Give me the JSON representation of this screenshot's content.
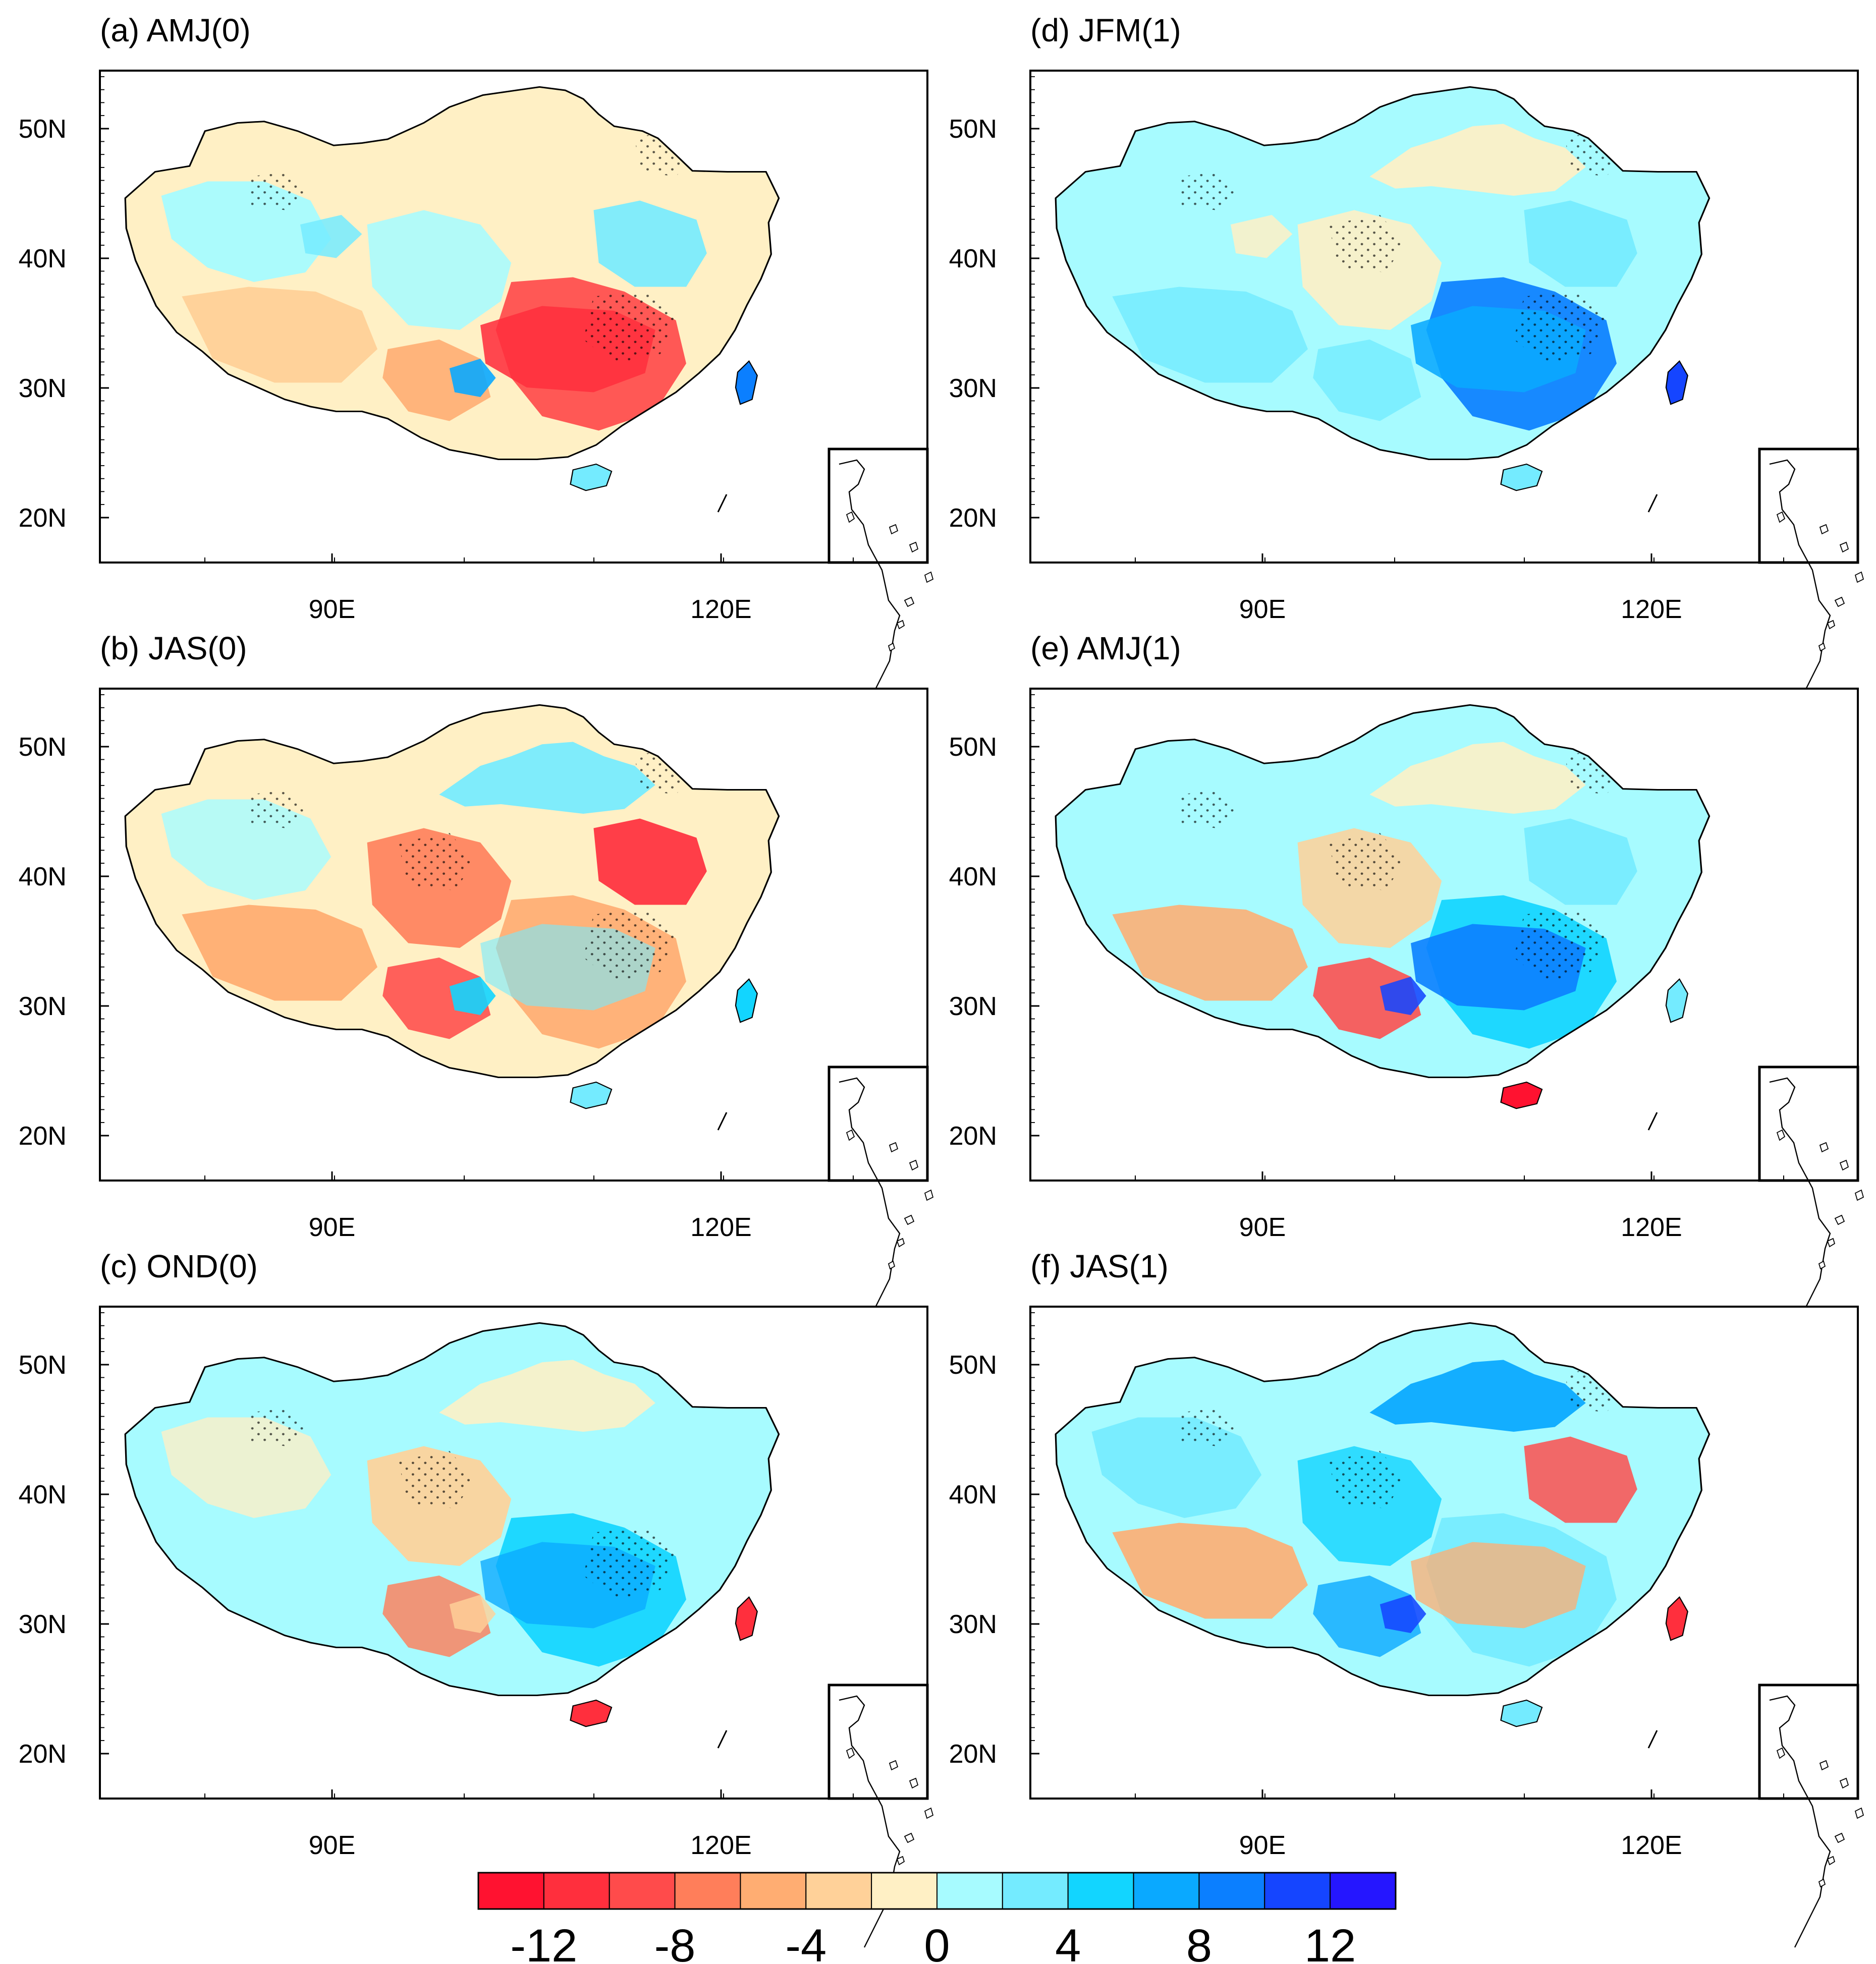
{
  "figure": {
    "panels": [
      {
        "id": "a",
        "title": "(a) AMJ(0)",
        "lat_ticks": [
          "50N",
          "40N",
          "30N",
          "20N"
        ],
        "lon_ticks": [
          "90E",
          "120E"
        ],
        "fill_scheme": "warm-south",
        "stippled": true
      },
      {
        "id": "b",
        "title": "(b) JAS(0)",
        "lat_ticks": [
          "50N",
          "40N",
          "30N",
          "20N"
        ],
        "lon_ticks": [
          "90E",
          "120E"
        ],
        "fill_scheme": "warm-east",
        "stippled": true
      },
      {
        "id": "c",
        "title": "(c) OND(0)",
        "lat_ticks": [
          "50N",
          "40N",
          "30N",
          "20N"
        ],
        "lon_ticks": [
          "90E",
          "120E"
        ],
        "fill_scheme": "cool-south",
        "stippled": true
      },
      {
        "id": "d",
        "title": "(d) JFM(1)",
        "lat_ticks": [
          "50N",
          "40N",
          "30N",
          "20N"
        ],
        "lon_ticks": [
          "90E",
          "120E"
        ],
        "fill_scheme": "cool-southeast",
        "stippled": true
      },
      {
        "id": "e",
        "title": "(e) AMJ(1)",
        "lat_ticks": [
          "50N",
          "40N",
          "30N",
          "20N"
        ],
        "lon_ticks": [
          "90E",
          "120E"
        ],
        "fill_scheme": "cool-south-strong",
        "stippled": true
      },
      {
        "id": "f",
        "title": "(f) JAS(1)",
        "lat_ticks": [
          "50N",
          "40N",
          "30N",
          "20N"
        ],
        "lon_ticks": [
          "90E",
          "120E"
        ],
        "fill_scheme": "cool-northeast",
        "stippled": true
      }
    ],
    "colorbar": {
      "colors": [
        "#ff1230",
        "#ff2f3d",
        "#ff4b4b",
        "#ff7e5a",
        "#ffad72",
        "#ffd199",
        "#fff0c5",
        "#a7fbff",
        "#74ebff",
        "#12d5ff",
        "#0aa9ff",
        "#0b7fff",
        "#1545ff",
        "#2516ff"
      ],
      "levels": [
        -14,
        -12,
        -10,
        -8,
        -6,
        -4,
        -2,
        0,
        2,
        4,
        6,
        8,
        10,
        12,
        14
      ],
      "labels": [
        "-12",
        "-8",
        "-4",
        "0",
        "4",
        "8",
        "12"
      ]
    }
  },
  "chart_data": {
    "type": "heatmap",
    "title": "",
    "panels": [
      "(a) AMJ(0)",
      "(b) JAS(0)",
      "(c) OND(0)",
      "(d) JFM(1)",
      "(e) AMJ(1)",
      "(f) JAS(1)"
    ],
    "x_axis_ticks": [
      "90E",
      "120E"
    ],
    "y_axis_ticks": [
      "50N",
      "40N",
      "30N",
      "20N"
    ],
    "legend_levels": [
      -12,
      -8,
      -4,
      0,
      4,
      8,
      12
    ],
    "lon_range": [
      72,
      136
    ],
    "lat_range": [
      17,
      55
    ]
  },
  "palette": {
    "frame": "#000000",
    "stipple": "#000000",
    "paper": "#ffffff"
  }
}
